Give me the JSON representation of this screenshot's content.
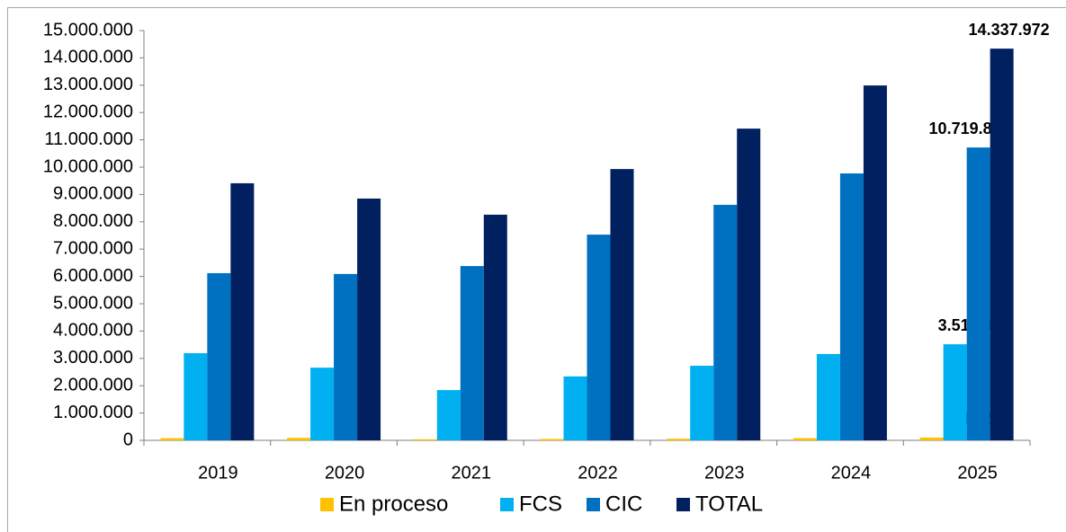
{
  "chart_data": {
    "type": "bar",
    "categories": [
      "2019",
      "2020",
      "2021",
      "2022",
      "2023",
      "2024",
      "2025"
    ],
    "series": [
      {
        "name": "En proceso",
        "color": "#ffc000",
        "values": [
          80000,
          90000,
          40000,
          50000,
          60000,
          80000,
          101243
        ],
        "value_labels": [
          null,
          null,
          null,
          null,
          null,
          null,
          "101.243"
        ]
      },
      {
        "name": "FCS",
        "color": "#00b0f0",
        "values": [
          3190000,
          2660000,
          1840000,
          2340000,
          2730000,
          3160000,
          3516895
        ],
        "value_labels": [
          null,
          null,
          null,
          null,
          null,
          null,
          "3.516.895"
        ]
      },
      {
        "name": "CIC",
        "color": "#0070c0",
        "values": [
          6120000,
          6090000,
          6380000,
          7530000,
          8620000,
          9770000,
          10719833
        ],
        "value_labels": [
          null,
          null,
          null,
          null,
          null,
          null,
          "10.719.833"
        ]
      },
      {
        "name": "TOTAL",
        "color": "#002060",
        "values": [
          9410000,
          8850000,
          8260000,
          9930000,
          11410000,
          12990000,
          14337972
        ],
        "value_labels": [
          null,
          null,
          null,
          null,
          null,
          null,
          "14.337.972"
        ]
      }
    ],
    "ylim": [
      0,
      15000000
    ],
    "yticks": [
      0,
      {
        "value": 1000000,
        "label": "1.000.000"
      },
      {
        "value": 2000000,
        "label": "2.000.000"
      },
      {
        "value": 3000000,
        "label": "3.000.000"
      },
      {
        "value": 4000000,
        "label": "4.000.000"
      },
      {
        "value": 5000000,
        "label": "5.000.000"
      },
      {
        "value": 6000000,
        "label": "6.000.000"
      },
      {
        "value": 7000000,
        "label": "7.000.000"
      },
      {
        "value": 8000000,
        "label": "8.000.000"
      },
      {
        "value": 9000000,
        "label": "9.000.000"
      },
      {
        "value": 10000000,
        "label": "10.000.000"
      },
      {
        "value": 11000000,
        "label": "11.000.000"
      },
      {
        "value": 12000000,
        "label": "12.000.000"
      },
      {
        "value": 13000000,
        "label": "13.000.000"
      },
      {
        "value": 14000000,
        "label": "14.000.000"
      },
      {
        "value": 15000000,
        "label": "15.000.000"
      }
    ],
    "grid": false,
    "legend": "bottom"
  }
}
